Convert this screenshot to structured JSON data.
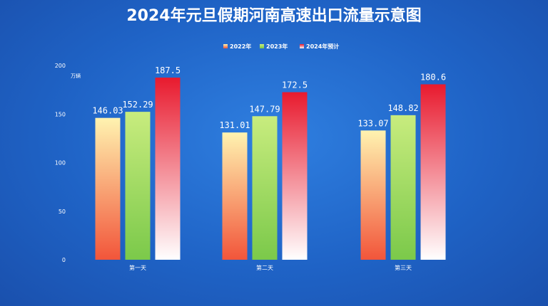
{
  "chart_data": {
    "type": "bar",
    "title": "2024年元旦假期河南高速出口流量示意图",
    "ylabel": "万辆",
    "xlabel": "",
    "ylim": [
      0,
      200
    ],
    "yticks": [
      0,
      50,
      100,
      150,
      200
    ],
    "categories": [
      "第一天",
      "第二天",
      "第三天"
    ],
    "legend_position": "top-center",
    "grid": false,
    "series": [
      {
        "name": "2022年",
        "values": [
          146.03,
          131.01,
          133.07
        ],
        "labels": [
          "146.03",
          "131.01",
          "133.07"
        ],
        "color_top": "#fff3b0",
        "color_bottom": "#f2553a"
      },
      {
        "name": "2023年",
        "values": [
          152.29,
          147.79,
          148.82
        ],
        "labels": [
          "152.29",
          "147.79",
          "148.82"
        ],
        "color_top": "#c8ec7e",
        "color_bottom": "#7bc94a"
      },
      {
        "name": "2024年预计",
        "values": [
          187.5,
          172.5,
          180.6
        ],
        "labels": [
          "187.5",
          "172.5",
          "180.6"
        ],
        "color_top": "#e81a2e",
        "color_bottom": "#ffffff"
      }
    ]
  }
}
